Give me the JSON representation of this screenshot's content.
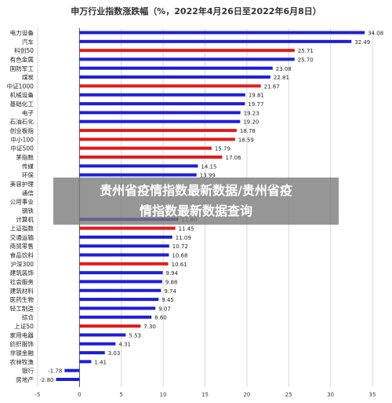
{
  "overlay": {
    "line1": "贵州省疫情指数最新数据/贵州省疫",
    "line2": "情指数最新数据查询"
  },
  "chart_data": {
    "type": "bar",
    "orientation": "horizontal",
    "title": "申万行业指数涨跌幅（%，2022年4月26日至2022年6月8日）",
    "xlabel": "",
    "ylabel": "",
    "xlim": [
      -5,
      35
    ],
    "xticks": [
      -5,
      0,
      5,
      10,
      15,
      20,
      25,
      30,
      35
    ],
    "grid": true,
    "colors": {
      "default": "#1f1fd6",
      "highlight": "#e01c1c"
    },
    "categories": [
      "电力设备",
      "汽车",
      "科创50",
      "有色金属",
      "国防军工",
      "煤炭",
      "中证1000",
      "机械设备",
      "基础化工",
      "电子",
      "石油石化",
      "创业板指",
      "中小100",
      "中证500",
      "茅指数",
      "传媒",
      "环保",
      "美容护理",
      "通信",
      "公用事业",
      "钢铁",
      "计算机",
      "上证指数",
      "交通运输",
      "商贸零售",
      "食品饮料",
      "沪深300",
      "建筑装饰",
      "社会服务",
      "建筑材料",
      "医药生物",
      "轻工制造",
      "综合",
      "上证50",
      "家用电器",
      "纺织服饰",
      "非银金融",
      "农林牧渔",
      "银行",
      "房地产"
    ],
    "values": [
      34.08,
      32.49,
      25.71,
      25.7,
      23.08,
      22.81,
      21.67,
      19.81,
      19.77,
      19.23,
      19.2,
      18.78,
      18.59,
      15.79,
      17.06,
      14.15,
      13.99,
      null,
      null,
      null,
      null,
      11.8,
      11.45,
      11.09,
      10.72,
      10.68,
      10.61,
      9.94,
      9.88,
      9.74,
      9.45,
      9.07,
      8.6,
      7.3,
      5.53,
      4.31,
      3.03,
      1.41,
      -1.78,
      -2.8
    ],
    "value_labels": [
      "34.08",
      "32.49",
      "25.71",
      "25.70",
      "23.08",
      "22.81",
      "21.67",
      "19.81",
      "19.77",
      "19.23",
      "19.20",
      "18.78",
      "18.59",
      "15.79",
      "17.06",
      "14.15",
      "13.99",
      "",
      "",
      "",
      "",
      "11.80",
      "11.45",
      "11.09",
      "10.72",
      "10.68",
      "10.61",
      "9.94",
      "9.88",
      "9.74",
      "9.45",
      "9.07",
      "8.60",
      "7.30",
      "5.53",
      "4.31",
      "3.03",
      "1.41",
      "-1.78",
      "-2.80"
    ],
    "highlight": [
      "科创50",
      "中证1000",
      "创业板指",
      "中小100",
      "中证500",
      "茅指数",
      "上证指数",
      "沪深300",
      "上证50"
    ]
  }
}
